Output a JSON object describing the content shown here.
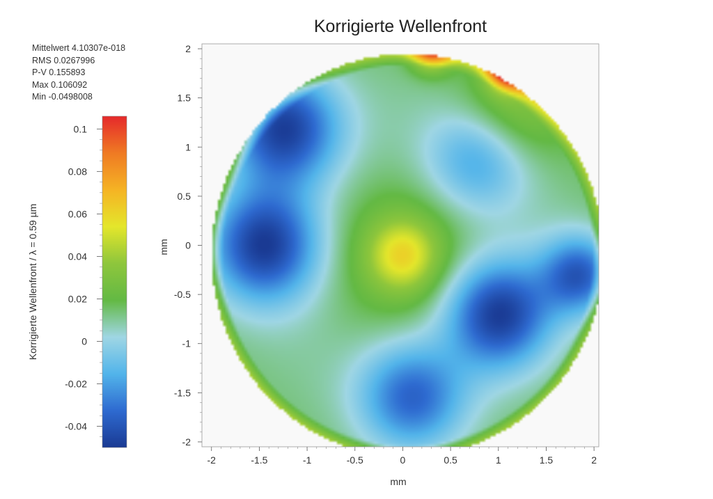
{
  "stats": [
    "Mittelwert 4.10307e-018",
    "RMS 0.0267996",
    "P-V 0.155893",
    "Max 0.106092",
    "Min -0.0498008"
  ],
  "chart_data": {
    "type": "heatmap",
    "title": "Korrigierte Wellenfront",
    "xlabel": "mm",
    "ylabel": "mm",
    "xlim": [
      -2.1,
      2.05
    ],
    "ylim": [
      -2.05,
      2.05
    ],
    "x_ticks": [
      -2,
      -1.5,
      -1,
      -0.5,
      0,
      0.5,
      1,
      1.5,
      2
    ],
    "x_tick_labels": [
      "-2",
      "-1.5",
      "-1",
      "-0.5",
      "0",
      "0.5",
      "1",
      "1.5",
      "2"
    ],
    "y_ticks": [
      2,
      1.5,
      1,
      0.5,
      0,
      -0.5,
      -1,
      -1.5,
      -2
    ],
    "y_tick_labels": [
      "2",
      "1.5",
      "1",
      "0.5",
      "0",
      "-0.5",
      "-1",
      "-1.5",
      "-2"
    ],
    "aperture": {
      "center": [
        0.05,
        -0.1
      ],
      "radius": 2.05
    },
    "colorbar": {
      "label": "Korrigierte Wellenfront / λ = 0.59 µm",
      "range": [
        -0.05,
        0.106
      ],
      "ticks": [
        0.1,
        0.08,
        0.06,
        0.04,
        0.02,
        0,
        -0.02,
        -0.04
      ],
      "tick_labels": [
        "0.1",
        "0.08",
        "0.06",
        "0.04",
        "0.02",
        "0",
        "-0.02",
        "-0.04"
      ],
      "colormap": [
        "#1a3a93",
        "#2e6ad0",
        "#52b4ea",
        "#9fd6e4",
        "#63b944",
        "#8ec63c",
        "#e4e62b",
        "#f5b324",
        "#ef7a23",
        "#e5292b"
      ]
    },
    "base_level": 0.022,
    "features": [
      {
        "x": 0.0,
        "y": -0.1,
        "sigma": 0.75,
        "amp": 0.04
      },
      {
        "x": 0.0,
        "y": -0.1,
        "sigma": 0.25,
        "amp": 0.035
      },
      {
        "x": 0.0,
        "y": -0.1,
        "sigma": 1.25,
        "amp": -0.035
      },
      {
        "x": -1.25,
        "y": 1.2,
        "sigma": 0.4,
        "amp": -0.06
      },
      {
        "x": -1.45,
        "y": 0.0,
        "sigma": 0.4,
        "amp": -0.06
      },
      {
        "x": 1.0,
        "y": -0.7,
        "sigma": 0.38,
        "amp": -0.06
      },
      {
        "x": 1.85,
        "y": -0.3,
        "sigma": 0.28,
        "amp": -0.05
      },
      {
        "x": 0.1,
        "y": -1.55,
        "sigma": 0.38,
        "amp": -0.045
      },
      {
        "x": 0.8,
        "y": 0.9,
        "sigma": 0.38,
        "amp": -0.035
      },
      {
        "x": 1.1,
        "y": 1.3,
        "sigma": 0.4,
        "amp": 0.025
      },
      {
        "x": 0.3,
        "y": 2.0,
        "sigma": 0.15,
        "amp": 0.06
      },
      {
        "x": 1.1,
        "y": 1.8,
        "sigma": 0.15,
        "amp": 0.07
      }
    ]
  }
}
